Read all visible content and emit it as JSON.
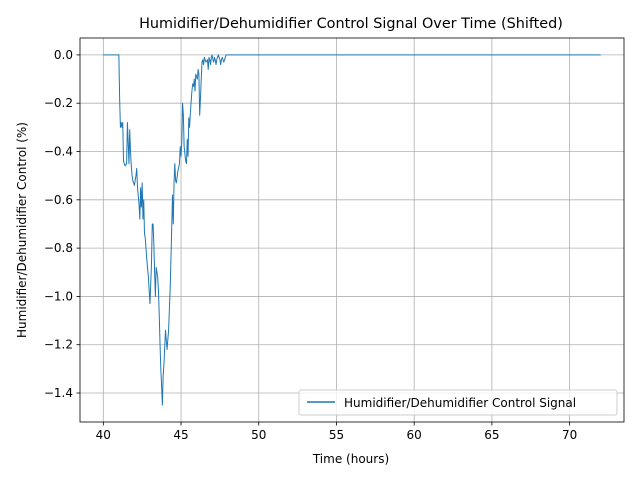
{
  "chart_data": {
    "type": "line",
    "title": "Humidifier/Dehumidifier Control Signal Over Time (Shifted)",
    "xlabel": "Time (hours)",
    "ylabel": "Humidifier/Dehumidifier Control (%)",
    "xlim": [
      38.5,
      73.5
    ],
    "ylim": [
      -1.52,
      0.07
    ],
    "xticks": [
      40,
      45,
      50,
      55,
      60,
      65,
      70
    ],
    "xtick_labels": [
      "40",
      "45",
      "50",
      "55",
      "60",
      "65",
      "70"
    ],
    "yticks": [
      0.0,
      -0.2,
      -0.4,
      -0.6,
      -0.8,
      -1.0,
      -1.2,
      -1.4
    ],
    "ytick_labels": [
      "0.0",
      "−0.2",
      "−0.4",
      "−0.6",
      "−0.8",
      "−1.0",
      "−1.2",
      "−1.4"
    ],
    "grid": true,
    "legend_position": "bottom-right",
    "series": [
      {
        "name": "Humidifier/Dehumidifier Control Signal",
        "color": "#1f77b4",
        "x": [
          40.0,
          40.5,
          40.85,
          41.0,
          41.05,
          41.1,
          41.15,
          41.2,
          41.25,
          41.3,
          41.4,
          41.5,
          41.55,
          41.6,
          41.65,
          41.7,
          41.75,
          41.8,
          41.85,
          41.9,
          42.0,
          42.1,
          42.15,
          42.2,
          42.3,
          42.35,
          42.4,
          42.45,
          42.5,
          42.55,
          42.6,
          42.65,
          42.7,
          42.8,
          42.9,
          43.0,
          43.05,
          43.1,
          43.15,
          43.2,
          43.25,
          43.3,
          43.35,
          43.4,
          43.5,
          43.55,
          43.6,
          43.65,
          43.7,
          43.75,
          43.8,
          43.85,
          43.9,
          44.0,
          44.1,
          44.2,
          44.3,
          44.35,
          44.4,
          44.45,
          44.5,
          44.55,
          44.6,
          44.65,
          44.7,
          44.8,
          44.9,
          44.95,
          45.0,
          45.05,
          45.1,
          45.15,
          45.2,
          45.3,
          45.35,
          45.4,
          45.45,
          45.5,
          45.55,
          45.6,
          45.7,
          45.75,
          45.8,
          45.85,
          45.9,
          45.95,
          46.0,
          46.05,
          46.1,
          46.15,
          46.2,
          46.25,
          46.3,
          46.35,
          46.4,
          46.45,
          46.5,
          46.6,
          46.7,
          46.75,
          46.8,
          46.85,
          46.9,
          46.95,
          47.0,
          47.05,
          47.1,
          47.15,
          47.2,
          47.25,
          47.3,
          47.35,
          47.4,
          47.5,
          47.55,
          47.6,
          47.65,
          47.7,
          47.75,
          47.8,
          47.85,
          47.9,
          48.0,
          49.0,
          55.0,
          60.0,
          65.0,
          72.0
        ],
        "y": [
          0.0,
          0.0,
          0.0,
          0.0,
          -0.18,
          -0.3,
          -0.28,
          -0.3,
          -0.28,
          -0.44,
          -0.46,
          -0.45,
          -0.28,
          -0.36,
          -0.45,
          -0.31,
          -0.4,
          -0.46,
          -0.5,
          -0.52,
          -0.54,
          -0.5,
          -0.47,
          -0.55,
          -0.62,
          -0.68,
          -0.55,
          -0.63,
          -0.53,
          -0.68,
          -0.6,
          -0.74,
          -0.76,
          -0.85,
          -0.92,
          -1.03,
          -0.95,
          -0.86,
          -0.7,
          -0.7,
          -0.78,
          -0.9,
          -1.0,
          -0.88,
          -0.92,
          -0.98,
          -1.08,
          -1.2,
          -1.3,
          -1.37,
          -1.45,
          -1.33,
          -1.28,
          -1.14,
          -1.22,
          -1.14,
          -0.97,
          -0.85,
          -0.72,
          -0.58,
          -0.7,
          -0.53,
          -0.45,
          -0.52,
          -0.53,
          -0.48,
          -0.45,
          -0.38,
          -0.42,
          -0.36,
          -0.2,
          -0.25,
          -0.38,
          -0.44,
          -0.45,
          -0.35,
          -0.42,
          -0.26,
          -0.3,
          -0.24,
          -0.15,
          -0.12,
          -0.13,
          -0.1,
          -0.15,
          -0.08,
          -0.09,
          -0.1,
          -0.06,
          -0.08,
          -0.25,
          -0.18,
          -0.1,
          -0.03,
          -0.02,
          -0.04,
          -0.01,
          -0.03,
          -0.02,
          -0.06,
          -0.01,
          -0.02,
          -0.04,
          -0.01,
          0.0,
          -0.02,
          -0.03,
          -0.01,
          -0.02,
          -0.04,
          -0.02,
          -0.01,
          0.0,
          -0.02,
          -0.04,
          -0.02,
          -0.01,
          -0.02,
          -0.03,
          -0.02,
          -0.01,
          0.0,
          0.0,
          0.0,
          0.0,
          0.0,
          0.0,
          0.0
        ]
      }
    ]
  }
}
